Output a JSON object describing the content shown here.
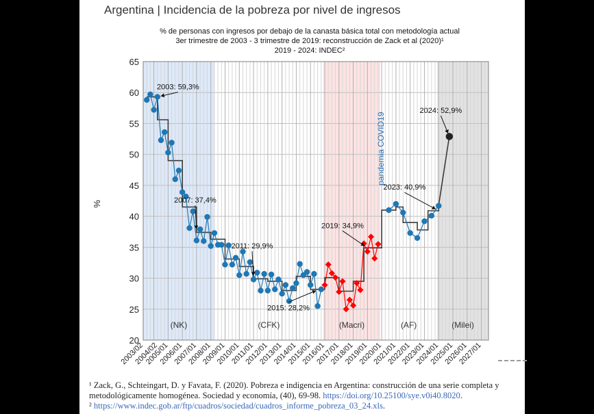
{
  "chart_data": {
    "type": "line",
    "title": "Argentina | Incidencia de la pobreza por nivel de ingresos",
    "subtitle_lines": [
      "% de personas con ingresos por debajo de la canasta básica total con metodología actual",
      "3er trimestre de 2003 - 3 trimestre de 2019: reconstrucción de Zack et al (2020)¹",
      "2019 - 2024: INDEC²"
    ],
    "ylabel": "%",
    "ylim": [
      20,
      65
    ],
    "yticks": [
      20,
      25,
      30,
      35,
      40,
      45,
      50,
      55,
      60,
      65
    ],
    "x_range": [
      2003.25,
      2027.5
    ],
    "x_tick_labels": [
      "2003/02",
      "2004/02",
      "2005/01",
      "2006/01",
      "2007/01",
      "2008/01",
      "2009/01",
      "2010/01",
      "2011/01",
      "2012/01",
      "2013/01",
      "2014/01",
      "2015/01",
      "2016/01",
      "2017/01",
      "2018/01",
      "2019/01",
      "2020/01",
      "2021/01",
      "2022/01",
      "2023/01",
      "2024/01",
      "2025/01",
      "2026/01",
      "2027/01"
    ],
    "x_tick_values": [
      2003.25,
      2004.25,
      2005.0,
      2006.0,
      2007.0,
      2008.0,
      2009.0,
      2010.0,
      2011.0,
      2012.0,
      2013.0,
      2014.0,
      2015.0,
      2016.0,
      2017.0,
      2018.0,
      2019.0,
      2020.0,
      2021.0,
      2022.0,
      2023.0,
      2024.0,
      2025.0,
      2026.0,
      2027.0
    ],
    "grid": true,
    "period_bands": [
      {
        "label": "(NK)",
        "x0": 2003.25,
        "x1": 2008.25,
        "color": "#dde9f9"
      },
      {
        "label": "(CFK)",
        "x0": 2008.25,
        "x1": 2015.9,
        "color": "#ffffff"
      },
      {
        "label": "(Macri)",
        "x0": 2015.9,
        "x1": 2019.9,
        "color": "#fde3e3"
      },
      {
        "label": "(AF)",
        "x0": 2019.9,
        "x1": 2023.9,
        "color": "#ffffff"
      },
      {
        "label": "(Milei)",
        "x0": 2023.9,
        "x1": 2027.5,
        "color": "#e2e2e2"
      }
    ],
    "vertical_label": {
      "text": "pandemia COVID19",
      "x": 2020.15
    },
    "series": [
      {
        "color": "#1f77b4",
        "points": [
          [
            2003.5,
            58.8
          ],
          [
            2003.75,
            59.7
          ],
          [
            2004.0,
            57.2
          ],
          [
            2004.25,
            59.3
          ],
          [
            2004.5,
            52.3
          ],
          [
            2004.75,
            53.6
          ],
          [
            2005.0,
            50.3
          ],
          [
            2005.25,
            51.9
          ],
          [
            2005.5,
            46.0
          ],
          [
            2005.75,
            47.4
          ],
          [
            2006.0,
            43.9
          ],
          [
            2006.25,
            43.2
          ],
          [
            2006.5,
            38.1
          ],
          [
            2006.75,
            40.8
          ],
          [
            2007.0,
            36.1
          ],
          [
            2007.25,
            37.9
          ],
          [
            2007.5,
            36.0
          ],
          [
            2007.75,
            39.9
          ],
          [
            2008.0,
            35.2
          ],
          [
            2008.25,
            37.3
          ],
          [
            2008.5,
            35.4
          ],
          [
            2008.75,
            35.4
          ],
          [
            2009.0,
            32.2
          ],
          [
            2009.25,
            35.3
          ],
          [
            2009.5,
            32.2
          ],
          [
            2009.75,
            33.3
          ],
          [
            2010.0,
            30.5
          ],
          [
            2010.25,
            34.3
          ],
          [
            2010.5,
            30.7
          ],
          [
            2010.75,
            32.6
          ],
          [
            2011.0,
            29.8
          ],
          [
            2011.25,
            30.9
          ],
          [
            2011.5,
            28.0
          ],
          [
            2011.75,
            30.7
          ],
          [
            2012.0,
            28.0
          ],
          [
            2012.25,
            30.6
          ],
          [
            2012.5,
            28.2
          ],
          [
            2012.75,
            29.8
          ],
          [
            2013.0,
            27.5
          ],
          [
            2013.25,
            28.9
          ],
          [
            2013.5,
            26.3
          ],
          [
            2013.75,
            28.4
          ],
          [
            2014.0,
            29.2
          ],
          [
            2014.25,
            32.3
          ],
          [
            2014.5,
            30.5
          ],
          [
            2014.75,
            31.0
          ],
          [
            2015.0,
            28.9
          ],
          [
            2015.25,
            30.7
          ],
          [
            2015.5,
            25.5
          ],
          [
            2015.75,
            28.2
          ]
        ]
      },
      {
        "color": "#ff0000",
        "points": [
          [
            2016.0,
            28.9
          ],
          [
            2016.25,
            32.2
          ],
          [
            2016.5,
            30.8
          ],
          [
            2016.75,
            30.1
          ],
          [
            2017.0,
            27.8
          ],
          [
            2017.25,
            29.5
          ],
          [
            2017.5,
            25.0
          ],
          [
            2017.75,
            26.5
          ],
          [
            2018.0,
            25.6
          ],
          [
            2018.25,
            29.2
          ],
          [
            2018.5,
            28.1
          ],
          [
            2018.75,
            35.6
          ],
          [
            2019.0,
            34.3
          ],
          [
            2019.25,
            36.7
          ],
          [
            2019.5,
            33.2
          ],
          [
            2019.75,
            35.5
          ]
        ]
      },
      {
        "color": "#1f77b4",
        "points": [
          [
            2020.5,
            41.0
          ],
          [
            2021.0,
            42.0
          ],
          [
            2021.5,
            40.6
          ],
          [
            2022.0,
            37.3
          ],
          [
            2022.5,
            36.5
          ],
          [
            2023.0,
            39.2
          ],
          [
            2023.5,
            40.1
          ],
          [
            2024.0,
            41.7
          ]
        ]
      },
      {
        "color": "#222222",
        "points": [
          [
            2024.75,
            52.9
          ]
        ]
      }
    ],
    "step_line": {
      "color": "#3a3a3a",
      "points": [
        [
          2003.5,
          59.3
        ],
        [
          2004.25,
          59.3
        ],
        [
          2004.25,
          55.6
        ],
        [
          2005.0,
          55.6
        ],
        [
          2005.0,
          49.0
        ],
        [
          2006.0,
          49.0
        ],
        [
          2006.0,
          41.5
        ],
        [
          2007.0,
          41.5
        ],
        [
          2007.0,
          37.4
        ],
        [
          2008.0,
          37.4
        ],
        [
          2008.0,
          36.3
        ],
        [
          2009.0,
          36.3
        ],
        [
          2009.0,
          33.1
        ],
        [
          2010.0,
          33.1
        ],
        [
          2010.0,
          31.9
        ],
        [
          2011.0,
          31.9
        ],
        [
          2011.0,
          29.9
        ],
        [
          2012.0,
          29.9
        ],
        [
          2012.0,
          29.5
        ],
        [
          2013.0,
          29.5
        ],
        [
          2013.0,
          28.0
        ],
        [
          2014.0,
          28.0
        ],
        [
          2014.0,
          30.3
        ],
        [
          2015.0,
          30.3
        ],
        [
          2015.0,
          28.2
        ],
        [
          2016.0,
          28.2
        ],
        [
          2016.0,
          30.1
        ],
        [
          2017.0,
          30.1
        ],
        [
          2017.0,
          27.9
        ],
        [
          2018.0,
          27.9
        ],
        [
          2018.0,
          29.5
        ],
        [
          2018.75,
          29.5
        ],
        [
          2018.75,
          34.9
        ],
        [
          2020.0,
          34.9
        ],
        [
          2020.0,
          41.0
        ],
        [
          2021.0,
          41.0
        ],
        [
          2021.0,
          41.5
        ],
        [
          2021.5,
          41.5
        ],
        [
          2021.5,
          39.0
        ],
        [
          2022.5,
          39.0
        ],
        [
          2022.5,
          37.8
        ],
        [
          2023.25,
          37.8
        ],
        [
          2023.25,
          40.9
        ],
        [
          2024.0,
          40.9
        ],
        [
          2024.0,
          41.8
        ],
        [
          2024.75,
          52.9
        ]
      ]
    },
    "annotations": [
      {
        "text": "2003: 59,3%",
        "x": 2004.25,
        "y": 59.3,
        "tx": 2005.7,
        "ty": 60.5
      },
      {
        "text": "2007: 37,4%",
        "x": 2007.0,
        "y": 37.4,
        "tx": 2006.9,
        "ty": 42.2
      },
      {
        "text": "2011: 29,9%",
        "x": 2011.0,
        "y": 29.9,
        "tx": 2010.9,
        "ty": 34.8
      },
      {
        "text": "2015: 28,2%",
        "x": 2015.6,
        "y": 28.2,
        "tx": 2013.45,
        "ty": 24.8
      },
      {
        "text": "2019: 34,9%",
        "x": 2019.0,
        "y": 34.9,
        "tx": 2017.25,
        "ty": 38.1
      },
      {
        "text": "2023: 40,9%",
        "x": 2024.0,
        "y": 40.9,
        "tx": 2021.6,
        "ty": 44.3
      },
      {
        "text": "2024: 52,9%",
        "x": 2024.75,
        "y": 52.9,
        "tx": 2024.15,
        "ty": 56.7
      }
    ]
  },
  "footnotes": {
    "note1_text": "¹ Zack, G., Schteingart, D. y Favata, F. (2020). Pobreza e indigencia en Argentina: construcción de una serie completa y metodológicamente homogénea. Sociedad y economía, (40), 69-98. ",
    "note1_link": "https://doi.org/10.25100/sye.v0i40.8020",
    "note1_tail": ".",
    "note2_mark": "² ",
    "note2_link": "https://www.indec.gob.ar/ftp/cuadros/sociedad/cuadros_informe_pobreza_03_24.xls",
    "note2_tail": "."
  }
}
